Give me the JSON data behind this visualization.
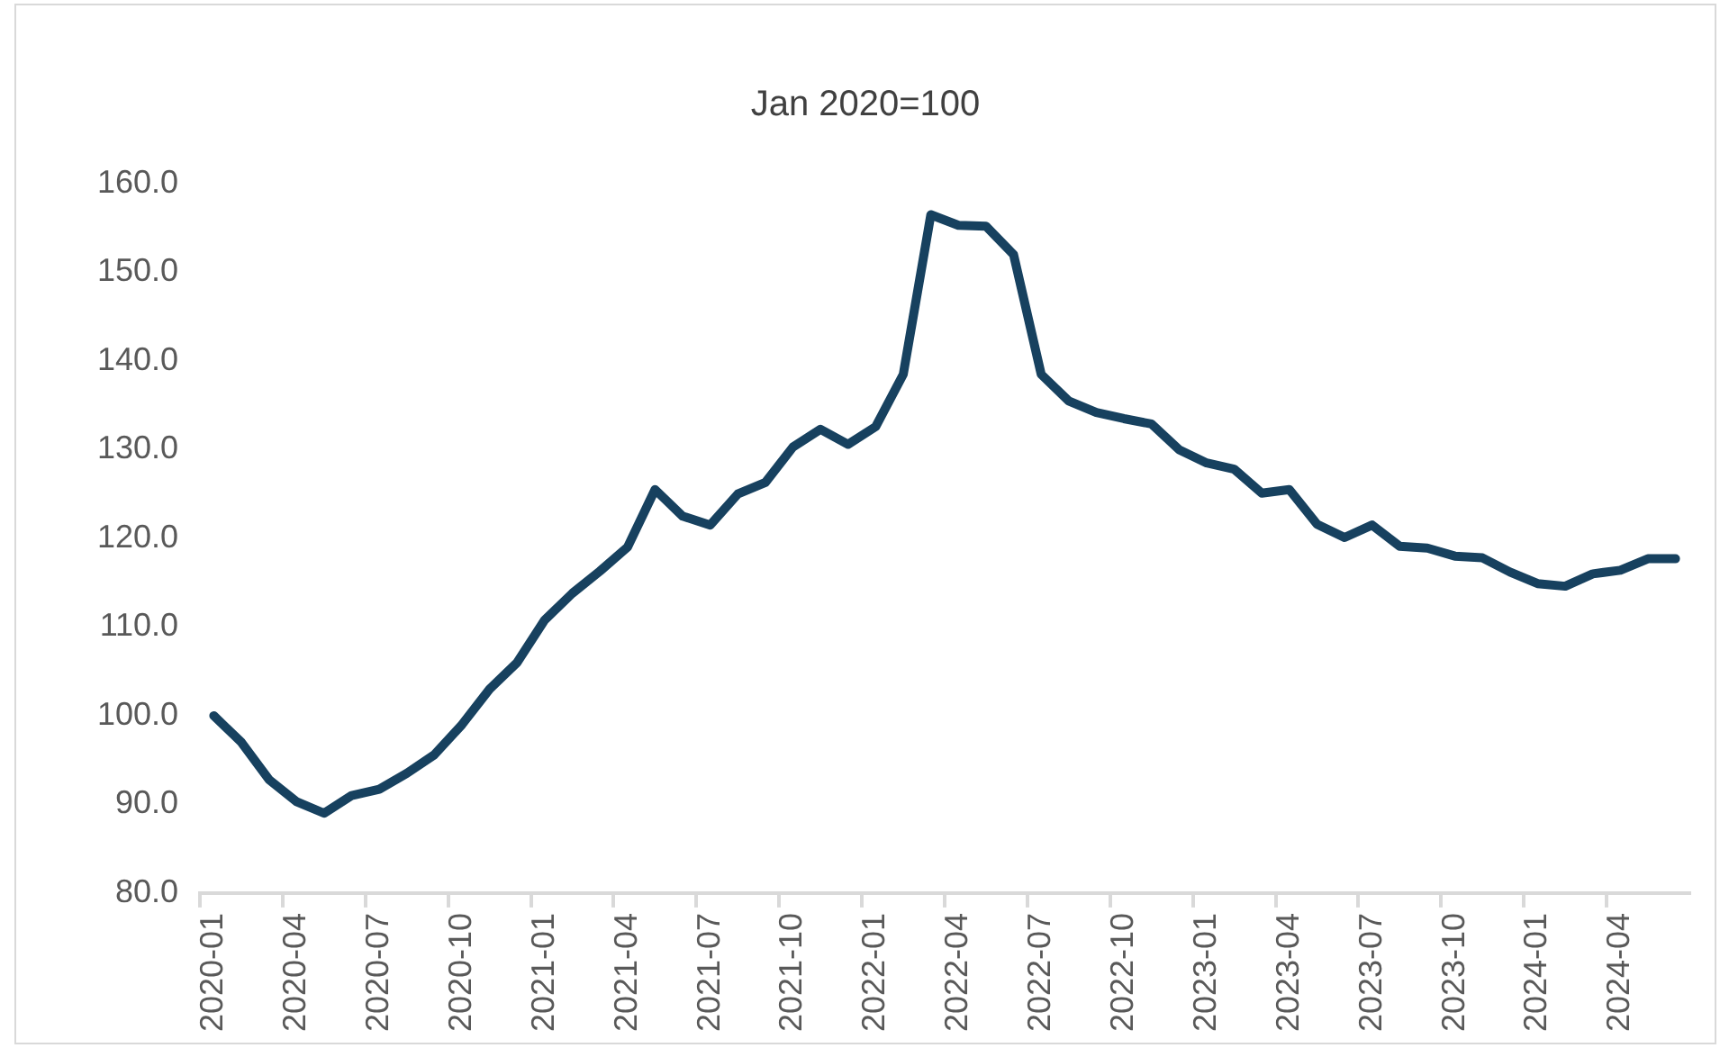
{
  "chart_data": {
    "type": "line",
    "title": "Jan 2020=100",
    "categories": [
      "2020-01",
      null,
      null,
      "2020-04",
      null,
      null,
      "2020-07",
      null,
      null,
      "2020-10",
      null,
      null,
      "2021-01",
      null,
      null,
      "2021-04",
      null,
      null,
      "2021-07",
      null,
      null,
      "2021-10",
      null,
      null,
      "2022-01",
      null,
      null,
      "2022-04",
      null,
      null,
      "2022-07",
      null,
      null,
      "2022-10",
      null,
      null,
      "2023-01",
      null,
      null,
      "2023-04",
      null,
      null,
      "2023-07",
      null,
      null,
      "2023-10",
      null,
      null,
      "2024-01",
      null,
      null,
      "2024-04",
      null,
      null
    ],
    "series": [
      {
        "color": "#17415f",
        "values": [
          100,
          97,
          92.8,
          90.3,
          89,
          91,
          91.7,
          93.5,
          95.6,
          99,
          103,
          106,
          110.8,
          113.8,
          116.3,
          119,
          125.5,
          122.5,
          121.5,
          125,
          126.3,
          130.3,
          132.3,
          130.6,
          132.6,
          138.5,
          156.5,
          155.3,
          155.2,
          152,
          138.5,
          135.5,
          134.2,
          133.5,
          132.9,
          130,
          128.5,
          127.8,
          125.1,
          125.5,
          121.6,
          120.1,
          121.5,
          119.1,
          118.9,
          118,
          117.8,
          116.2,
          114.9,
          114.6,
          116,
          116.4,
          117.7,
          117.7
        ]
      }
    ],
    "ylim": [
      80,
      160
    ],
    "yticks": [
      {
        "value": 80,
        "label": "80.0"
      },
      {
        "value": 90,
        "label": "90.0"
      },
      {
        "value": 100,
        "label": "100.0"
      },
      {
        "value": 110,
        "label": "110.0"
      },
      {
        "value": 120,
        "label": "120.0"
      },
      {
        "value": 130,
        "label": "130.0"
      },
      {
        "value": 140,
        "label": "140.0"
      },
      {
        "value": 150,
        "label": "150.0"
      },
      {
        "value": 160,
        "label": "160.0"
      }
    ],
    "grid": false,
    "legend": false,
    "marker": "none",
    "line_style": "solid"
  }
}
